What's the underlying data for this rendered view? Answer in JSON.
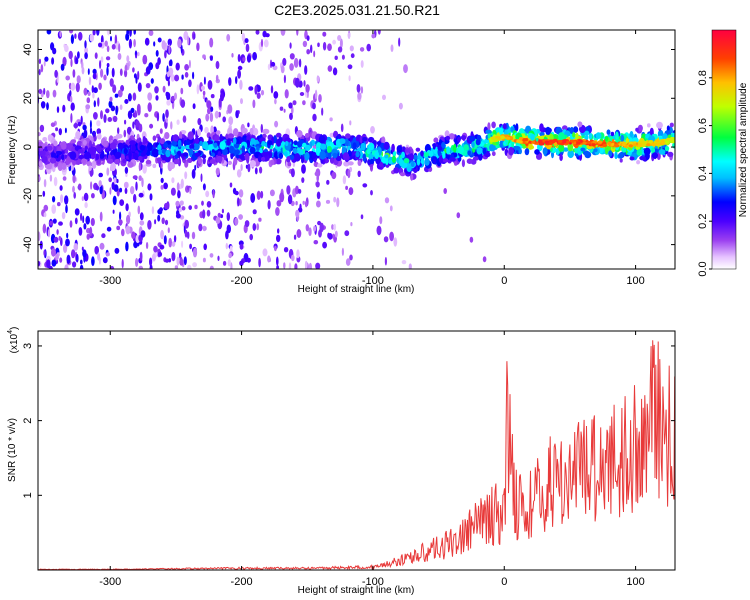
{
  "chart_data": [
    {
      "type": "heatmap",
      "title": "C2E3.2025.031.21.50.R21",
      "xlabel": "Height of straight line (km)",
      "ylabel": "Frequency (Hz)",
      "xlim": [
        -355,
        130
      ],
      "ylim": [
        -50,
        48
      ],
      "x_ticks": [
        "-300",
        "-200",
        "-100",
        "0",
        "100"
      ],
      "y_ticks": [
        "40",
        "20",
        "0",
        "-20",
        "-40"
      ],
      "colorbar": {
        "label": "Normalized spectral amplitude",
        "range": [
          0,
          1
        ],
        "ticks": [
          "0.0",
          "0.2",
          "0.4",
          "0.6",
          "0.8"
        ],
        "colors": [
          "#ffffff",
          "#e6c3ff",
          "#8a2be2",
          "#4b0082",
          "#0000ff",
          "#00ffff",
          "#00ff00",
          "#ffff00",
          "#ff8000",
          "#ff0000",
          "#ff0040"
        ]
      },
      "ridge": {
        "x": [
          -350,
          -300,
          -250,
          -200,
          -150,
          -120,
          -100,
          -80,
          -70,
          -60,
          -40,
          -20,
          -10,
          0,
          20,
          40,
          60,
          80,
          100,
          120,
          130
        ],
        "freq": [
          -3,
          -2,
          -1,
          0,
          -1,
          0,
          -2,
          -5,
          -7,
          -4,
          -1,
          0,
          3,
          4,
          2,
          2,
          2,
          1,
          1,
          2,
          3
        ],
        "amp": [
          0.25,
          0.3,
          0.45,
          0.5,
          0.55,
          0.5,
          0.55,
          0.6,
          0.45,
          0.5,
          0.55,
          0.6,
          0.7,
          0.8,
          0.9,
          0.95,
          0.9,
          0.85,
          0.8,
          0.75,
          0.7
        ]
      },
      "trail": {
        "x": [
          -45,
          -35,
          -25,
          -15
        ],
        "freq": [
          -18,
          -28,
          -38,
          -46
        ]
      }
    },
    {
      "type": "line",
      "xlabel": "Height of straight line (km)",
      "ylabel": "SNR (10 * v/v)",
      "y_multiplier": "(x10",
      "y_multiplier_exp": "4",
      "xlim": [
        -355,
        130
      ],
      "ylim": [
        0,
        3.2
      ],
      "x_ticks": [
        "-300",
        "-200",
        "-100",
        "0",
        "100"
      ],
      "y_ticks": [
        "3",
        "2",
        "1"
      ],
      "color": "#e83a3a",
      "series": [
        {
          "x": [
            -350,
            -300,
            -250,
            -200,
            -150,
            -100,
            -80,
            -60,
            -40,
            -20,
            -10,
            0,
            2,
            10,
            20,
            30,
            40,
            50,
            60,
            70,
            80,
            90,
            100,
            110,
            115,
            120,
            130
          ],
          "y": [
            0.01,
            0.01,
            0.02,
            0.03,
            0.03,
            0.05,
            0.15,
            0.3,
            0.45,
            0.75,
            0.95,
            0.9,
            2.48,
            1.05,
            1.1,
            1.3,
            1.6,
            1.5,
            1.7,
            1.8,
            1.85,
            1.9,
            2.0,
            2.3,
            3.2,
            2.0,
            2.4
          ]
        }
      ]
    }
  ]
}
